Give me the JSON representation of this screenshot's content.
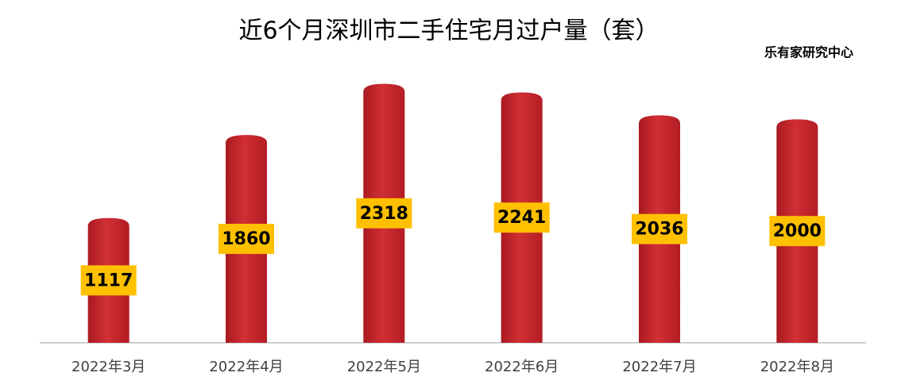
{
  "chart_data": {
    "type": "bar",
    "title": "近6个月深圳市二手住宅月过户量（套）",
    "source": "乐有家研究中心",
    "categories": [
      "2022年3月",
      "2022年4月",
      "2022年5月",
      "2022年6月",
      "2022年7月",
      "2022年8月"
    ],
    "values": [
      1117,
      1860,
      2318,
      2241,
      2036,
      2000
    ],
    "color": "#c9282e",
    "label_color": "#ffc000",
    "ylim": [
      0,
      2500
    ],
    "grid": false
  }
}
